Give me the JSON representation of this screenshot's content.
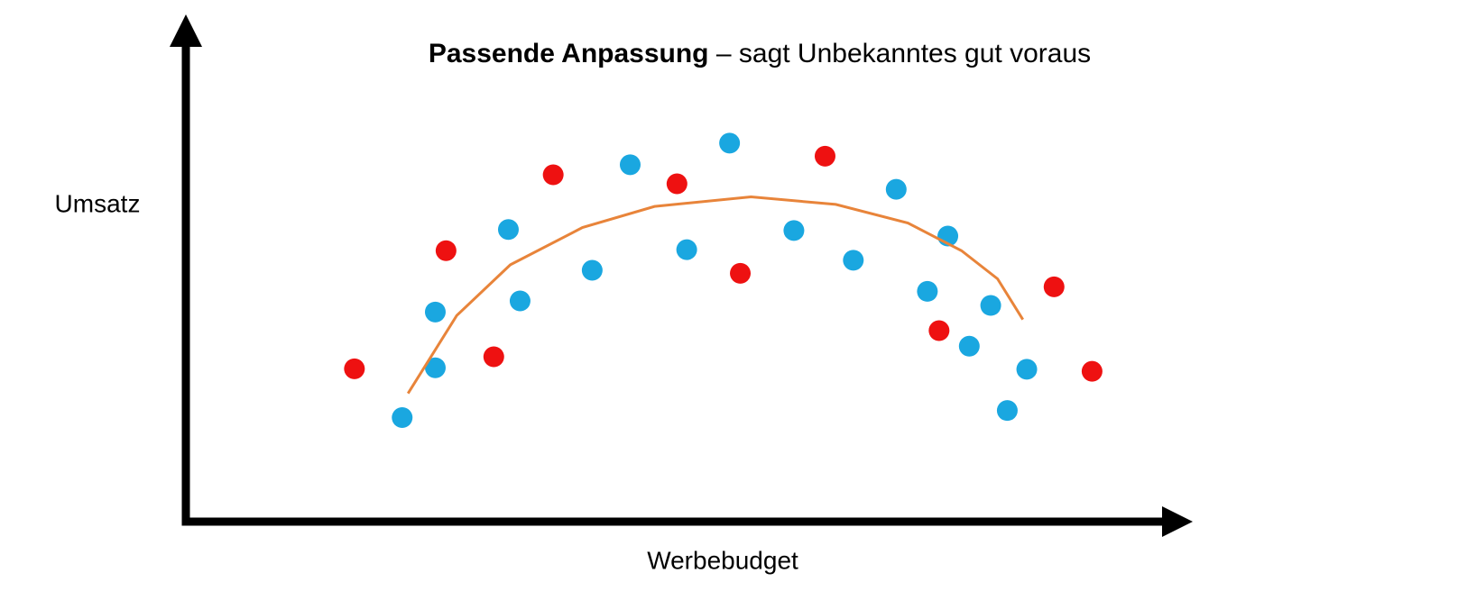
{
  "chart_data": {
    "type": "scatter",
    "title": "Passende Anpassung",
    "subtitle": "– sagt Unbekanntes gut voraus",
    "x_label": "Werbebudget",
    "y_label": "Umsatz",
    "xlim": [
      0,
      100
    ],
    "ylim": [
      0,
      100
    ],
    "axis_color": "#000000",
    "series": [
      {
        "mode": "markers",
        "color": "#1aa7e0",
        "x": [
          22.2,
          25.6,
          25.6,
          33.1,
          34.3,
          41.7,
          45.6,
          51.4,
          55.8,
          62.4,
          68.5,
          72.9,
          78.2,
          76.1,
          82.6,
          80.4,
          86.3,
          84.3
        ],
        "values": [
          20.7,
          30.6,
          41.7,
          58.1,
          43.9,
          50.0,
          71.0,
          54.1,
          75.3,
          57.9,
          52.0,
          66.1,
          56.8,
          45.8,
          43.0,
          34.9,
          30.3,
          22.1
        ]
      },
      {
        "mode": "markers",
        "color": "#ee1111",
        "x": [
          17.3,
          26.7,
          31.6,
          37.7,
          50.4,
          56.9,
          65.6,
          77.3,
          89.1,
          93.0
        ],
        "values": [
          30.4,
          53.9,
          32.8,
          69.0,
          67.2,
          49.4,
          72.7,
          38.0,
          46.7,
          29.9
        ]
      },
      {
        "mode": "line",
        "color": "#e8843a",
        "x": [
          22.8,
          27.8,
          33.3,
          40.7,
          48.1,
          58.0,
          66.7,
          74.1,
          79.6,
          83.3,
          85.9
        ],
        "values": [
          25.5,
          41.0,
          51.1,
          58.5,
          62.7,
          64.6,
          63.1,
          59.4,
          53.9,
          48.3,
          40.2
        ]
      }
    ]
  }
}
